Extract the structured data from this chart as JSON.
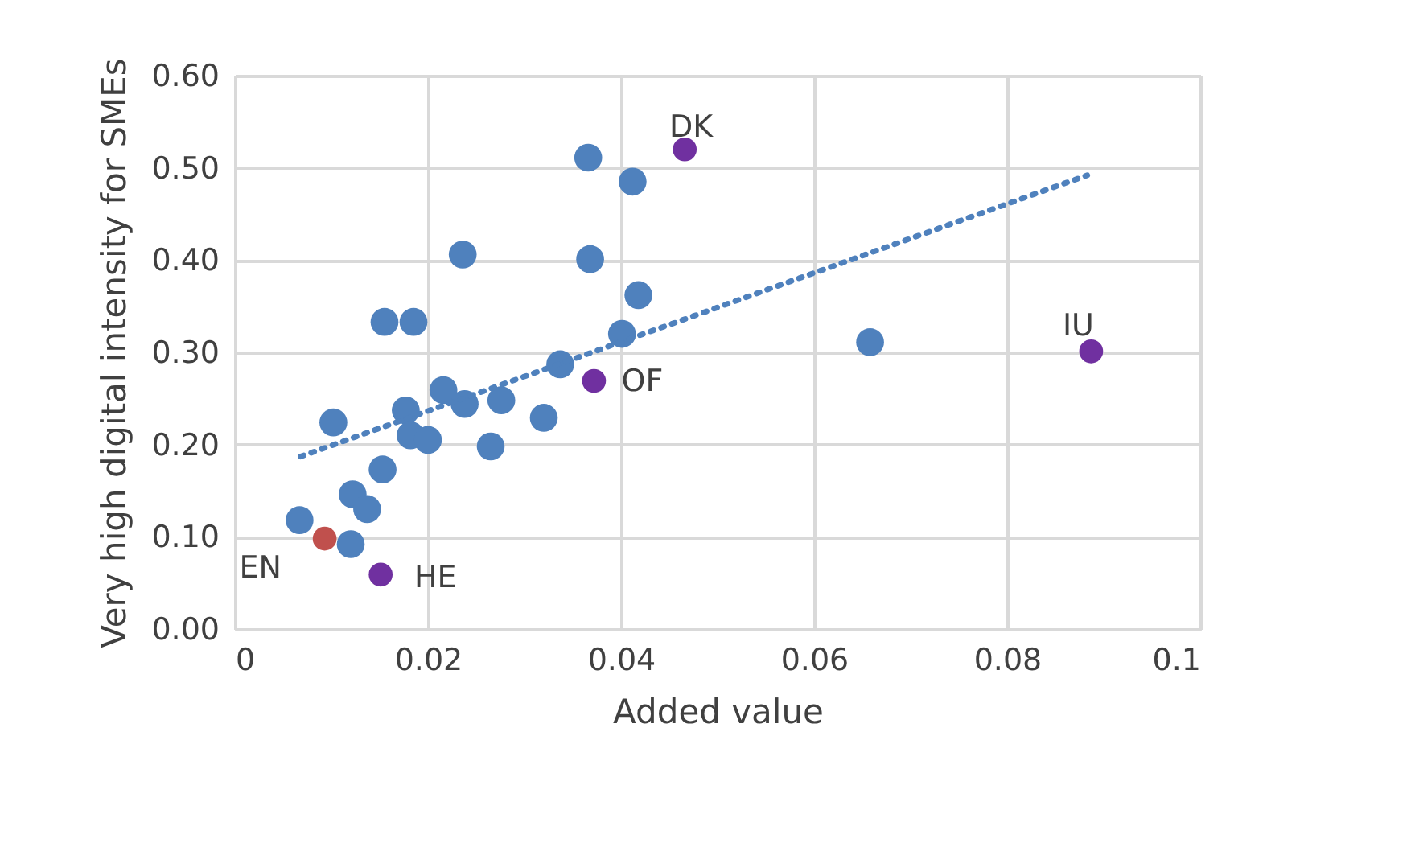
{
  "chart_data": {
    "type": "scatter",
    "xlabel": "Added value",
    "ylabel": "Very high digital intensity for SMEs",
    "xlim": [
      0,
      0.1
    ],
    "xticks": [
      0,
      0.02,
      0.04,
      0.06,
      0.08,
      0.1
    ],
    "ylim": [
      0,
      0.6
    ],
    "yticks": [
      {
        "value": 0,
        "label": "0.00"
      },
      {
        "value": 0.1,
        "label": "0.10"
      },
      {
        "value": 0.2,
        "label": "0.20"
      },
      {
        "value": 0.3,
        "label": "0.30"
      },
      {
        "value": 0.4,
        "label": "0.40"
      },
      {
        "value": 0.5,
        "label": "0.50"
      },
      {
        "value": 0.6,
        "label": "0.60"
      }
    ],
    "grid": true,
    "marker": "circle",
    "series": [
      {
        "color": "#4f81bd",
        "x": [
          0.0067,
          0.012,
          0.0122,
          0.0137,
          0.0153,
          0.0102,
          0.0155,
          0.0185,
          0.0177,
          0.0182,
          0.02,
          0.0216,
          0.0238,
          0.0236,
          0.0265,
          0.0276,
          0.032,
          0.0337,
          0.0366,
          0.0368,
          0.0401,
          0.0412,
          0.0418,
          0.0658
        ],
        "values": [
          0.118,
          0.092,
          0.146,
          0.13,
          0.173,
          0.224,
          0.333,
          0.333,
          0.237,
          0.21,
          0.205,
          0.259,
          0.244,
          0.406,
          0.198,
          0.248,
          0.229,
          0.287,
          0.511,
          0.401,
          0.32,
          0.485,
          0.362,
          0.311
        ]
      },
      {
        "color": "#c0504d",
        "x": [
          0.0093
        ],
        "values": [
          0.098
        ]
      },
      {
        "color": "#7030a0",
        "x": [
          0.0151,
          0.0372,
          0.0466,
          0.0887
        ],
        "values": [
          0.059,
          0.269,
          0.52,
          0.301
        ]
      },
      {
        "type": "line",
        "line_style": "dotted",
        "marker": "none",
        "color": "#4f81bd",
        "x": [
          0.0068,
          0.0883
        ],
        "values": [
          0.187,
          0.492
        ]
      }
    ],
    "annotations": [
      {
        "text": "EN",
        "x": 0.0093,
        "y": 0.098
      },
      {
        "text": "HE",
        "x": 0.0151,
        "y": 0.059
      },
      {
        "text": "OF",
        "x": 0.0372,
        "y": 0.269
      },
      {
        "text": "DK",
        "x": 0.0466,
        "y": 0.52
      },
      {
        "text": "IU",
        "x": 0.0887,
        "y": 0.301
      }
    ]
  }
}
